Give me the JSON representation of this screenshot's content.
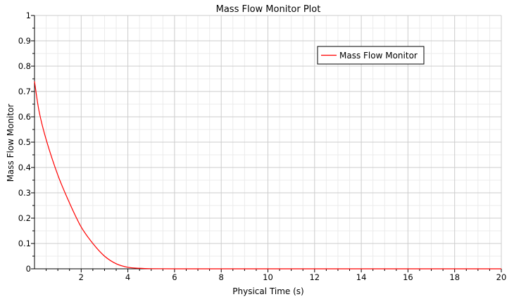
{
  "chart_data": {
    "type": "line",
    "title": "Mass Flow Monitor Plot",
    "xlabel": "Physical Time (s)",
    "ylabel": "Mass Flow Monitor",
    "xlim": [
      0,
      20
    ],
    "ylim": [
      0,
      1
    ],
    "x_ticks": [
      "2",
      "4",
      "6",
      "8",
      "10",
      "12",
      "14",
      "16",
      "18",
      "20"
    ],
    "y_ticks": [
      "0",
      "0.1",
      "0.2",
      "0.3",
      "0.4",
      "0.5",
      "0.6",
      "0.7",
      "0.8",
      "0.9",
      "1"
    ],
    "grid": true,
    "legend_position": "top-right",
    "series": [
      {
        "name": "Mass Flow Monitor",
        "color": "#ff0000",
        "x": [
          0.0,
          0.2,
          0.5,
          1.0,
          1.5,
          2.0,
          2.5,
          3.0,
          3.5,
          4.0,
          4.5,
          5.0,
          6.0,
          8.0,
          10.0,
          14.0,
          20.0
        ],
        "y": [
          0.74,
          0.62,
          0.51,
          0.37,
          0.26,
          0.165,
          0.1,
          0.05,
          0.02,
          0.006,
          0.002,
          0.0005,
          0.0,
          0.0,
          0.0,
          0.0,
          0.0
        ]
      }
    ]
  }
}
